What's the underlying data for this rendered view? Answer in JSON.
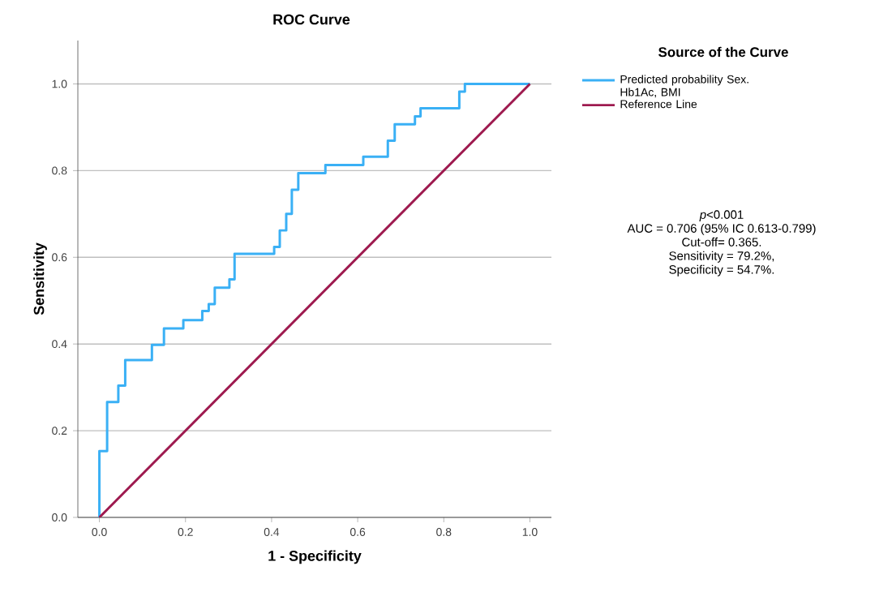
{
  "chart_data": {
    "type": "step",
    "title": "ROC Curve",
    "xlabel": "1 - Specificity",
    "ylabel": "Sensitivity",
    "legend_title": "Source of the Curve",
    "legend": "right",
    "grid": "y",
    "xlim": [
      -0.05,
      1.05
    ],
    "ylim": [
      0,
      1.1
    ],
    "xticks": [
      {
        "value": 0,
        "label": "0.0"
      },
      {
        "value": 0.2,
        "label": "0.2"
      },
      {
        "value": 0.4,
        "label": "0.4"
      },
      {
        "value": 0.6,
        "label": "0.6"
      },
      {
        "value": 0.8,
        "label": "0.8"
      },
      {
        "value": 1,
        "label": "1.0"
      }
    ],
    "yticks": [
      {
        "value": 0,
        "label": "0.0"
      },
      {
        "value": 0.2,
        "label": "0.2"
      },
      {
        "value": 0.4,
        "label": "0.4"
      },
      {
        "value": 0.6,
        "label": "0.6"
      },
      {
        "value": 0.8,
        "label": "0.8"
      },
      {
        "value": 1,
        "label": "1.0"
      }
    ],
    "series": [
      {
        "name": "Predicted probability Sex. Hb1Ac, BMI",
        "color": "#3ab0f5",
        "type": "step",
        "x": [
          0,
          0,
          0.018,
          0.044,
          0.06,
          0.122,
          0.15,
          0.195,
          0.239,
          0.254,
          0.268,
          0.302,
          0.314,
          0.406,
          0.419,
          0.434,
          0.447,
          0.462,
          0.525,
          0.613,
          0.67,
          0.686,
          0.733,
          0.746,
          0.836,
          0.849,
          1
        ],
        "values": [
          0,
          0.153,
          0.266,
          0.304,
          0.363,
          0.398,
          0.436,
          0.455,
          0.476,
          0.492,
          0.53,
          0.549,
          0.608,
          0.624,
          0.662,
          0.7,
          0.756,
          0.794,
          0.813,
          0.832,
          0.869,
          0.907,
          0.925,
          0.944,
          0.982,
          1,
          1
        ]
      },
      {
        "name": "Reference Line",
        "color": "#9e1a4f",
        "type": "line",
        "x": [
          0,
          1
        ],
        "values": [
          0,
          1
        ]
      }
    ],
    "annotations": [
      "*p*<0.001",
      "AUC = 0.706 (95% IC 0.613-0.799)",
      "Cut-off= 0.365.",
      "Sensitivity = 79.2%,",
      "Specificity = 54.7%."
    ]
  }
}
